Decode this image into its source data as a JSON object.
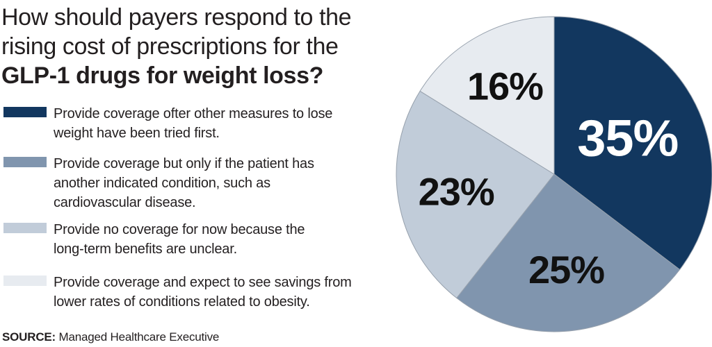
{
  "title": {
    "line1": "How should payers respond to the",
    "line2": "rising cost of prescriptions for the",
    "line3": "GLP-1 drugs for weight loss?"
  },
  "legend": {
    "items": [
      {
        "label": "Provide coverage ofter other measures to lose\nweight have been tried first."
      },
      {
        "label": "Provide coverage but only if the patient has\nanother indicated condition, such as\ncardiovascular disease."
      },
      {
        "label": "Provide no coverage for now because the\nlong-term benefits are unclear."
      },
      {
        "label": "Provide coverage and expect to see savings from\nlower rates of conditions related to obesity."
      }
    ]
  },
  "source": {
    "label": "SOURCE:",
    "text": " Managed Healthcare Executive"
  },
  "chart_data": {
    "type": "pie",
    "title": "How should payers respond to the rising cost of prescriptions for the GLP-1 drugs for weight loss?",
    "start_angle_deg": 0,
    "direction": "clockwise",
    "legend_position": "left",
    "stroke_color": "#97a1ad",
    "slices": [
      {
        "label": "Provide coverage ofter other measures to lose weight have been tried first.",
        "value": 35,
        "display": "35%",
        "color": "#12375f",
        "label_color": "#ffffff",
        "label_font_px": 74,
        "label_radius": 0.52
      },
      {
        "label": "Provide coverage but only if the patient has another indicated condition, such as cardiovascular disease.",
        "value": 25,
        "display": "25%",
        "color": "#8095ae",
        "label_color": "#111111",
        "label_font_px": 56,
        "label_radius": 0.61
      },
      {
        "label": "Provide no coverage for now because the long-term benefits are unclear.",
        "value": 23,
        "display": "23%",
        "color": "#c1ccd9",
        "label_color": "#111111",
        "label_font_px": 56,
        "label_radius": 0.63
      },
      {
        "label": "Provide coverage and expect to see savings from lower rates of conditions related to obesity.",
        "value": 16,
        "display": "16%",
        "color": "#e7ebf0",
        "label_color": "#111111",
        "label_font_px": 56,
        "label_radius": 0.64
      }
    ]
  }
}
